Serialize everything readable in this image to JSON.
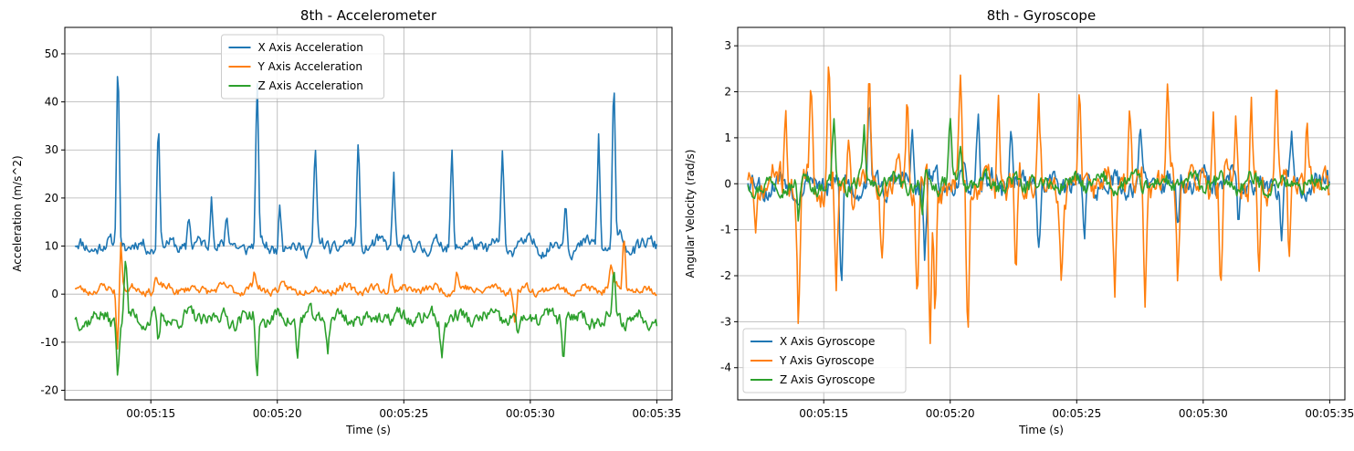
{
  "chart_data": [
    {
      "type": "line",
      "title": "8th - Accelerometer",
      "xlabel": "Time (s)",
      "ylabel": "Acceleration (m/s^2)",
      "xlim": [
        "00:05:11.6",
        "00:05:35.6"
      ],
      "ylim": [
        -22,
        55.5
      ],
      "x_ticks": [
        "00:05:15",
        "00:05:20",
        "00:05:25",
        "00:05:30",
        "00:05:35"
      ],
      "y_ticks": [
        -20,
        -10,
        0,
        10,
        20,
        30,
        40,
        50
      ],
      "grid": true,
      "legend": "upper center",
      "x_range": [
        "00:05:12",
        "00:05:35"
      ],
      "series": [
        {
          "name": "X Axis Acceleration",
          "color": "#1f77b4",
          "baseline": 10,
          "noise": 2.6,
          "seed": 11,
          "spikes": [
            [
              13.7,
              52
            ],
            [
              15.3,
              39
            ],
            [
              16.5,
              17.5
            ],
            [
              17.4,
              23.5
            ],
            [
              18.0,
              16
            ],
            [
              19.2,
              44.5
            ],
            [
              20.1,
              19
            ],
            [
              21.5,
              30.5
            ],
            [
              23.2,
              34
            ],
            [
              24.6,
              26.5
            ],
            [
              26.9,
              31
            ],
            [
              28.9,
              29
            ],
            [
              29.5,
              12
            ],
            [
              31.4,
              20.5
            ],
            [
              32.7,
              33.5
            ],
            [
              33.3,
              46
            ],
            [
              33.6,
              13
            ]
          ]
        },
        {
          "name": "Y Axis Acceleration",
          "color": "#ff7f0e",
          "baseline": 1,
          "noise": 1.6,
          "seed": 23,
          "spikes": [
            [
              13.8,
              13.5
            ],
            [
              13.7,
              -13
            ],
            [
              15.2,
              4
            ],
            [
              19.1,
              5
            ],
            [
              24.5,
              4.5
            ],
            [
              27.1,
              5
            ],
            [
              29.4,
              -7
            ],
            [
              33.7,
              13.5
            ],
            [
              33.2,
              5.5
            ]
          ]
        },
        {
          "name": "Z Axis Acceleration",
          "color": "#2ca02c",
          "baseline": -5,
          "noise": 2.8,
          "seed": 37,
          "spikes": [
            [
              13.7,
              -17.5
            ],
            [
              14.0,
              8.5
            ],
            [
              15.3,
              -12
            ],
            [
              19.2,
              -18.5
            ],
            [
              20.8,
              -13
            ],
            [
              22.0,
              -10.5
            ],
            [
              26.5,
              -13.5
            ],
            [
              29.5,
              -10
            ],
            [
              31.3,
              -13
            ],
            [
              33.3,
              4
            ]
          ]
        }
      ]
    },
    {
      "type": "line",
      "title": "8th - Gyroscope",
      "xlabel": "Time (s)",
      "ylabel": "Angular Velocity (rad/s)",
      "xlim": [
        "00:05:11.6",
        "00:05:35.6"
      ],
      "ylim": [
        -4.7,
        3.4
      ],
      "x_ticks": [
        "00:05:15",
        "00:05:20",
        "00:05:25",
        "00:05:30",
        "00:05:35"
      ],
      "y_ticks": [
        -4,
        -3,
        -2,
        -1,
        0,
        1,
        2,
        3
      ],
      "grid": true,
      "legend": "lower left",
      "x_range": [
        "00:05:12",
        "00:05:35"
      ],
      "series": [
        {
          "name": "X Axis Gyroscope",
          "color": "#1f77b4",
          "baseline": 0,
          "noise": 0.45,
          "seed": 53,
          "spikes": [
            [
              15.7,
              -2.7
            ],
            [
              16.8,
              1.6
            ],
            [
              18.5,
              1.2
            ],
            [
              19.0,
              -1.9
            ],
            [
              21.1,
              1.5
            ],
            [
              22.4,
              1.3
            ],
            [
              23.5,
              -1.4
            ],
            [
              25.3,
              -1.2
            ],
            [
              27.5,
              1.1
            ],
            [
              29.0,
              -1.1
            ],
            [
              31.4,
              -1.0
            ],
            [
              33.5,
              1.2
            ],
            [
              33.1,
              -1.3
            ]
          ]
        },
        {
          "name": "Y Axis Gyroscope",
          "color": "#ff7f0e",
          "baseline": 0,
          "noise": 0.6,
          "seed": 71,
          "spikes": [
            [
              12.3,
              -1.4
            ],
            [
              13.5,
              1.9
            ],
            [
              14.0,
              -3.1
            ],
            [
              14.5,
              1.9
            ],
            [
              15.2,
              3.05
            ],
            [
              15.5,
              -2.7
            ],
            [
              16.0,
              1.6
            ],
            [
              16.8,
              2.2
            ],
            [
              17.3,
              -1.8
            ],
            [
              18.3,
              2.1
            ],
            [
              18.7,
              -2.5
            ],
            [
              19.2,
              -4.4
            ],
            [
              19.4,
              -3.1
            ],
            [
              20.4,
              2.15
            ],
            [
              20.7,
              -3.55
            ],
            [
              21.9,
              2.1
            ],
            [
              22.6,
              -2.3
            ],
            [
              23.5,
              1.9
            ],
            [
              24.4,
              -2.2
            ],
            [
              25.1,
              1.9
            ],
            [
              26.5,
              -2.4
            ],
            [
              27.1,
              2.15
            ],
            [
              27.7,
              -2.65
            ],
            [
              28.6,
              1.9
            ],
            [
              29.0,
              -2.2
            ],
            [
              30.4,
              1.9
            ],
            [
              30.7,
              -2.4
            ],
            [
              31.3,
              1.8
            ],
            [
              31.9,
              2.1
            ],
            [
              32.2,
              -2.8
            ],
            [
              32.9,
              2.25
            ],
            [
              33.4,
              -2.0
            ],
            [
              34.1,
              1.3
            ]
          ]
        },
        {
          "name": "Z Axis Gyroscope",
          "color": "#2ca02c",
          "baseline": 0,
          "noise": 0.32,
          "seed": 97,
          "spikes": [
            [
              15.4,
              1.5
            ],
            [
              16.6,
              1.0
            ],
            [
              20.0,
              1.4
            ],
            [
              20.4,
              0.9
            ],
            [
              14.0,
              -0.9
            ],
            [
              18.9,
              -0.8
            ]
          ]
        }
      ]
    }
  ]
}
